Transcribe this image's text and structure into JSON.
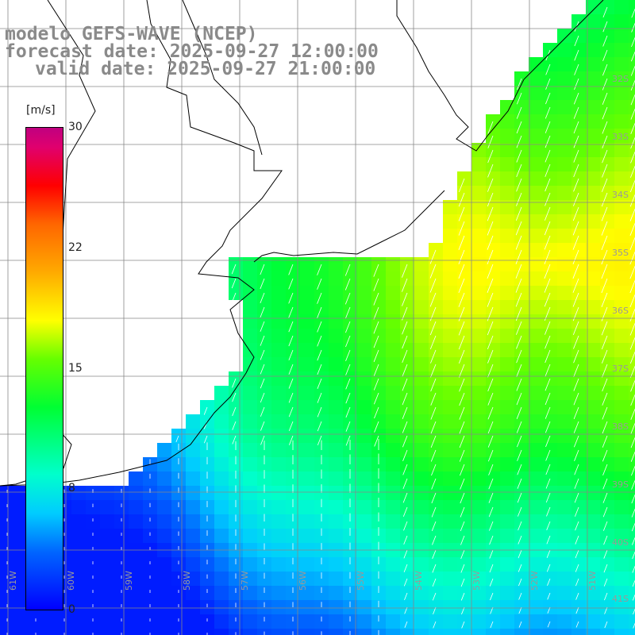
{
  "titles": {
    "line1": "modelo GEFS-WAVE (NCEP)",
    "line2": "forecast date: 2025-09-27 12:00:00",
    "line3": "valid date: 2025-09-27 21:00:00"
  },
  "colorbar": {
    "unit": "[m/s]",
    "ticks": [
      "30",
      "22",
      "15",
      "8",
      "0"
    ],
    "tick_values": [
      30,
      22,
      15,
      8,
      0
    ],
    "min": 0,
    "max": 30
  },
  "map": {
    "lat_labels": [
      "32S",
      "33S",
      "34S",
      "35S",
      "36S",
      "37S",
      "38S",
      "39S",
      "40S",
      "41S"
    ],
    "lon_labels": [
      "61W",
      "60W",
      "59W",
      "58W",
      "57W",
      "56W",
      "55W",
      "54W",
      "53W",
      "52W",
      "51W"
    ],
    "colors": {
      "land": "#ffffff",
      "coast": "#000000",
      "grid": "#888888",
      "arrow": "#ffffff"
    }
  }
}
